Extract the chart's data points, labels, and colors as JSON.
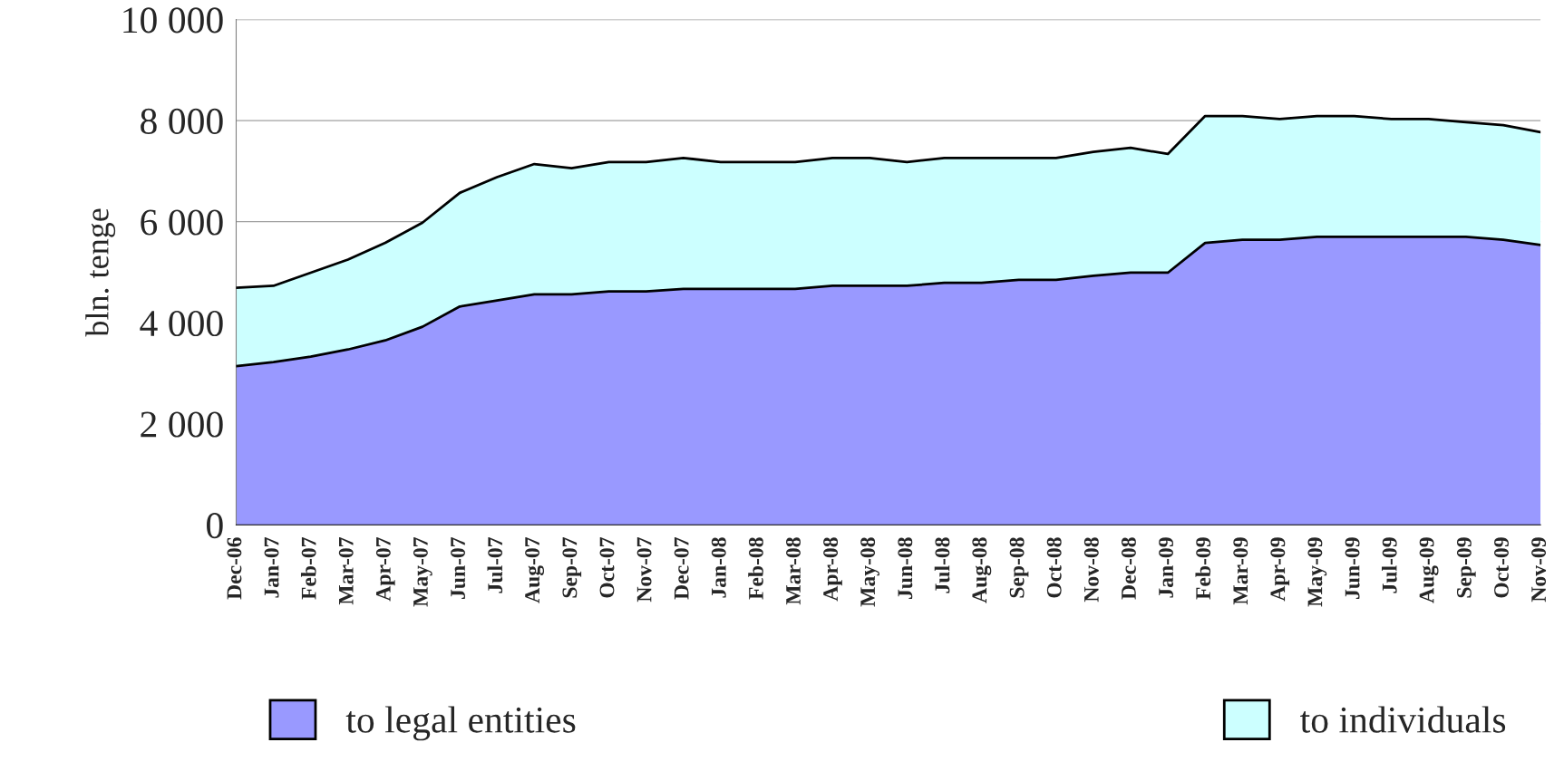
{
  "chart_data": {
    "type": "area",
    "stacked": true,
    "ylabel": "bln. tenge",
    "categories": [
      "Dec-06",
      "Jan-07",
      "Feb-07",
      "Mar-07",
      "Apr-07",
      "May-07",
      "Jun-07",
      "Jul-07",
      "Aug-07",
      "Sep-07",
      "Oct-07",
      "Nov-07",
      "Dec-07",
      "Jan-08",
      "Feb-08",
      "Mar-08",
      "Apr-08",
      "May-08",
      "Jun-08",
      "Jul-08",
      "Aug-08",
      "Sep-08",
      "Oct-08",
      "Nov-08",
      "Dec-08",
      "Jan-09",
      "Feb-09",
      "Mar-09",
      "Apr-09",
      "May-09",
      "Jun-09",
      "Jul-09",
      "Aug-09",
      "Sep-09",
      "Oct-09",
      "Nov-09"
    ],
    "series": [
      {
        "name": "to legal entities",
        "color": "#9999ff",
        "values": [
          3140,
          3220,
          3330,
          3470,
          3650,
          3920,
          4320,
          4440,
          4560,
          4560,
          4620,
          4620,
          4670,
          4670,
          4670,
          4670,
          4730,
          4730,
          4730,
          4790,
          4790,
          4850,
          4850,
          4930,
          4990,
          4990,
          5580,
          5640,
          5640,
          5700,
          5700,
          5700,
          5700,
          5700,
          5640,
          5540
        ]
      },
      {
        "name": "to individuals",
        "color": "#ccffff",
        "values": [
          1550,
          1510,
          1660,
          1780,
          1930,
          2060,
          2250,
          2440,
          2580,
          2500,
          2560,
          2560,
          2590,
          2510,
          2510,
          2510,
          2530,
          2530,
          2450,
          2470,
          2470,
          2410,
          2410,
          2450,
          2470,
          2350,
          2510,
          2450,
          2390,
          2390,
          2390,
          2330,
          2330,
          2270,
          2270,
          2230
        ]
      }
    ],
    "ylim": [
      0,
      10000
    ],
    "yticks": [
      0,
      {
        "value": 2000,
        "label": "2 000"
      },
      {
        "value": 4000,
        "label": "4 000"
      },
      {
        "value": 6000,
        "label": "6 000"
      },
      {
        "value": 8000,
        "label": "8 000"
      },
      {
        "value": 10000,
        "label": "10 000"
      }
    ],
    "grid": "y",
    "legend": "bottom"
  }
}
